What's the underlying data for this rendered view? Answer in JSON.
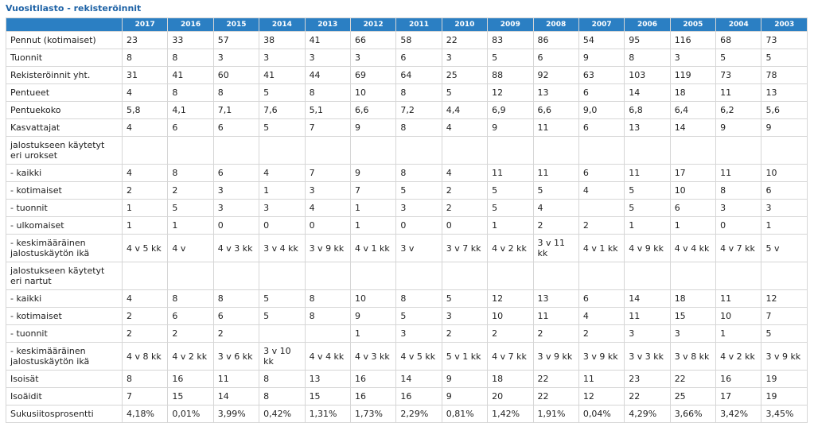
{
  "title": "Vuositilasto - rekisteröinnit",
  "years": [
    "2017",
    "2016",
    "2015",
    "2014",
    "2013",
    "2012",
    "2011",
    "2010",
    "2009",
    "2008",
    "2007",
    "2006",
    "2005",
    "2004",
    "2003"
  ],
  "rows": [
    {
      "label": "Pennut (kotimaiset)",
      "values": [
        "23",
        "33",
        "57",
        "38",
        "41",
        "66",
        "58",
        "22",
        "83",
        "86",
        "54",
        "95",
        "116",
        "68",
        "73"
      ]
    },
    {
      "label": "Tuonnit",
      "values": [
        "8",
        "8",
        "3",
        "3",
        "3",
        "3",
        "6",
        "3",
        "5",
        "6",
        "9",
        "8",
        "3",
        "5",
        "5"
      ]
    },
    {
      "label": "Rekisteröinnit yht.",
      "values": [
        "31",
        "41",
        "60",
        "41",
        "44",
        "69",
        "64",
        "25",
        "88",
        "92",
        "63",
        "103",
        "119",
        "73",
        "78"
      ]
    },
    {
      "label": "Pentueet",
      "values": [
        "4",
        "8",
        "8",
        "5",
        "8",
        "10",
        "8",
        "5",
        "12",
        "13",
        "6",
        "14",
        "18",
        "11",
        "13"
      ]
    },
    {
      "label": "Pentuekoko",
      "values": [
        "5,8",
        "4,1",
        "7,1",
        "7,6",
        "5,1",
        "6,6",
        "7,2",
        "4,4",
        "6,9",
        "6,6",
        "9,0",
        "6,8",
        "6,4",
        "6,2",
        "5,6"
      ]
    },
    {
      "label": "Kasvattajat",
      "values": [
        "4",
        "6",
        "6",
        "5",
        "7",
        "9",
        "8",
        "4",
        "9",
        "11",
        "6",
        "13",
        "14",
        "9",
        "9"
      ]
    },
    {
      "label": "jalostukseen käytetyt eri urokset",
      "values": [
        "",
        "",
        "",
        "",
        "",
        "",
        "",
        "",
        "",
        "",
        "",
        "",
        "",
        "",
        ""
      ],
      "tall": true
    },
    {
      "label": "- kaikki",
      "values": [
        "4",
        "8",
        "6",
        "4",
        "7",
        "9",
        "8",
        "4",
        "11",
        "11",
        "6",
        "11",
        "17",
        "11",
        "10"
      ]
    },
    {
      "label": "- kotimaiset",
      "values": [
        "2",
        "2",
        "3",
        "1",
        "3",
        "7",
        "5",
        "2",
        "5",
        "5",
        "4",
        "5",
        "10",
        "8",
        "6"
      ]
    },
    {
      "label": "- tuonnit",
      "values": [
        "1",
        "5",
        "3",
        "3",
        "4",
        "1",
        "3",
        "2",
        "5",
        "4",
        "",
        "5",
        "6",
        "3",
        "3"
      ]
    },
    {
      "label": "- ulkomaiset",
      "values": [
        "1",
        "1",
        "0",
        "0",
        "0",
        "1",
        "0",
        "0",
        "1",
        "2",
        "2",
        "1",
        "1",
        "0",
        "1"
      ]
    },
    {
      "label": "- keskimääräinen jalostuskäytön ikä",
      "values": [
        "4 v 5 kk",
        "4 v",
        "4 v 3 kk",
        "3 v 4 kk",
        "3 v 9 kk",
        "4 v 1 kk",
        "3 v",
        "3 v 7 kk",
        "4 v 2 kk",
        "3 v 11 kk",
        "4 v 1 kk",
        "4 v 9 kk",
        "4 v 4 kk",
        "4 v 7 kk",
        "5 v"
      ],
      "tall": true
    },
    {
      "label": "jalostukseen käytetyt eri nartut",
      "values": [
        "",
        "",
        "",
        "",
        "",
        "",
        "",
        "",
        "",
        "",
        "",
        "",
        "",
        "",
        ""
      ],
      "tall": true
    },
    {
      "label": "- kaikki",
      "values": [
        "4",
        "8",
        "8",
        "5",
        "8",
        "10",
        "8",
        "5",
        "12",
        "13",
        "6",
        "14",
        "18",
        "11",
        "12"
      ]
    },
    {
      "label": "- kotimaiset",
      "values": [
        "2",
        "6",
        "6",
        "5",
        "8",
        "9",
        "5",
        "3",
        "10",
        "11",
        "4",
        "11",
        "15",
        "10",
        "7"
      ]
    },
    {
      "label": "- tuonnit",
      "values": [
        "2",
        "2",
        "2",
        "",
        "",
        "1",
        "3",
        "2",
        "2",
        "2",
        "2",
        "3",
        "3",
        "1",
        "5"
      ]
    },
    {
      "label": "- keskimääräinen jalostuskäytön ikä",
      "values": [
        "4 v 8 kk",
        "4 v 2 kk",
        "3 v 6 kk",
        "3 v 10 kk",
        "4 v 4 kk",
        "4 v 3 kk",
        "4 v 5 kk",
        "5 v 1 kk",
        "4 v 7 kk",
        "3 v 9 kk",
        "3 v 9 kk",
        "3 v 3 kk",
        "3 v 8 kk",
        "4 v 2 kk",
        "3 v 9 kk"
      ],
      "tall": true
    },
    {
      "label": "Isoisät",
      "values": [
        "8",
        "16",
        "11",
        "8",
        "13",
        "16",
        "14",
        "9",
        "18",
        "22",
        "11",
        "23",
        "22",
        "16",
        "19"
      ]
    },
    {
      "label": "Isoäidit",
      "values": [
        "7",
        "15",
        "14",
        "8",
        "15",
        "16",
        "16",
        "9",
        "20",
        "22",
        "12",
        "22",
        "25",
        "17",
        "19"
      ]
    },
    {
      "label": "Sukusiitosprosentti",
      "values": [
        "4,18%",
        "0,01%",
        "3,99%",
        "0,42%",
        "1,31%",
        "1,73%",
        "2,29%",
        "0,81%",
        "1,42%",
        "1,91%",
        "0,04%",
        "4,29%",
        "3,66%",
        "3,42%",
        "3,45%"
      ]
    }
  ]
}
